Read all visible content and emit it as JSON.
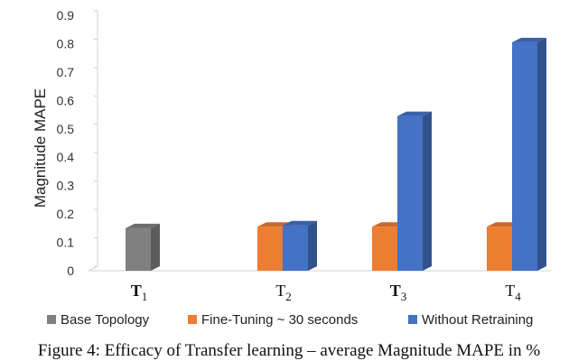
{
  "caption": "Figure 4: Efficacy of Transfer learning – average Magnitude MAPE in %",
  "chart_data": {
    "type": "bar",
    "ylabel": "Magnitude MAPE",
    "xlabel": "",
    "ylim": [
      0,
      0.9
    ],
    "yticks": [
      "0",
      "0.1",
      "0.2",
      "0.3",
      "0.4",
      "0.5",
      "0.6",
      "0.7",
      "0.8",
      "0.9"
    ],
    "grid": "none",
    "legend_position": "bottom",
    "categories": [
      {
        "base": "T",
        "sub": "1",
        "bold": true
      },
      {
        "base": "T",
        "sub": "2",
        "bold": false
      },
      {
        "base": "T",
        "sub": "3",
        "bold": true
      },
      {
        "base": "T",
        "sub": "4",
        "bold": false
      }
    ],
    "series": [
      {
        "name": "Base Topology",
        "color": "#808080",
        "values": [
          0.15,
          null,
          null,
          null
        ]
      },
      {
        "name": "Fine-Tuning ~ 30 seconds",
        "color": "#ED7D31",
        "values": [
          null,
          0.155,
          0.155,
          0.155
        ]
      },
      {
        "name": "Without Retraining",
        "color": "#4472C4",
        "values": [
          null,
          0.16,
          0.545,
          0.805
        ]
      }
    ]
  }
}
